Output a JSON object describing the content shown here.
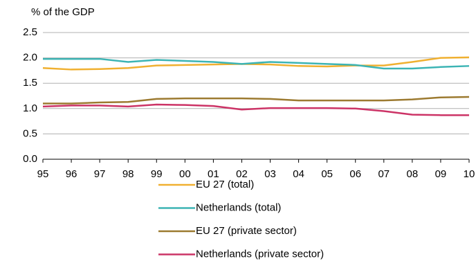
{
  "chart_data": {
    "type": "line",
    "y_label": "% of the GDP",
    "categories": [
      "95",
      "96",
      "97",
      "98",
      "99",
      "00",
      "01",
      "02",
      "03",
      "04",
      "05",
      "06",
      "07",
      "08",
      "09",
      "10"
    ],
    "series": [
      {
        "name": "EU 27 (total)",
        "color": "#f0b030",
        "values": [
          1.8,
          1.77,
          1.78,
          1.8,
          1.85,
          1.86,
          1.87,
          1.88,
          1.87,
          1.84,
          1.83,
          1.85,
          1.85,
          1.92,
          2.0,
          2.01
        ]
      },
      {
        "name": "Netherlands (total)",
        "color": "#3cb4b4",
        "values": [
          1.98,
          1.98,
          1.98,
          1.92,
          1.96,
          1.94,
          1.92,
          1.88,
          1.92,
          1.9,
          1.88,
          1.86,
          1.79,
          1.79,
          1.82,
          1.84
        ]
      },
      {
        "name": "EU 27 (private sector)",
        "color": "#9c7a30",
        "values": [
          1.1,
          1.1,
          1.12,
          1.13,
          1.19,
          1.2,
          1.2,
          1.2,
          1.19,
          1.16,
          1.16,
          1.16,
          1.16,
          1.18,
          1.22,
          1.23
        ]
      },
      {
        "name": "Netherlands (private sector)",
        "color": "#cc3366",
        "values": [
          1.04,
          1.06,
          1.06,
          1.04,
          1.08,
          1.07,
          1.05,
          0.98,
          1.01,
          1.01,
          1.01,
          1.0,
          0.95,
          0.88,
          0.87,
          0.87
        ]
      }
    ],
    "ylim": [
      0,
      2.5
    ],
    "yticks": [
      {
        "value": 0,
        "label": "0.0"
      },
      0.5,
      {
        "value": 1,
        "label": "1.0"
      },
      1.5,
      {
        "value": 2,
        "label": "2.0"
      },
      2.5
    ],
    "grid": true
  }
}
